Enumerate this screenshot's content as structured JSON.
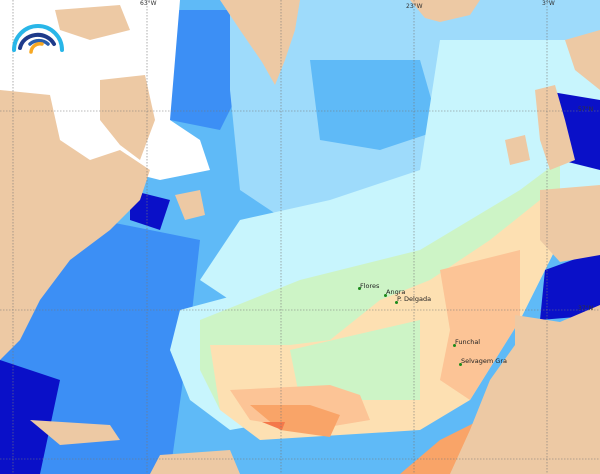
{
  "map": {
    "longitude_labels": [
      "63°W",
      "23°W",
      "3°W"
    ],
    "latitude_labels": [
      "57°N",
      "37°N"
    ],
    "places": [
      {
        "name": "Flores"
      },
      {
        "name": "Angra"
      },
      {
        "name": "P. Delgada"
      },
      {
        "name": "Funchal"
      },
      {
        "name": "Selvagem Gra"
      }
    ],
    "colors": {
      "land": "#edc9a4",
      "deep_blue": "#0a10c8",
      "blue": "#3c8ff5",
      "mid_blue": "#5fbaf7",
      "light_blue": "#9edbfb",
      "cyan": "#c8f5fd",
      "green": "#cdf4c6",
      "beige": "#fde0b2",
      "light_orange": "#fcc496",
      "orange": "#f9a468",
      "dark_orange": "#f4784a"
    },
    "logo": "arc-logo"
  }
}
